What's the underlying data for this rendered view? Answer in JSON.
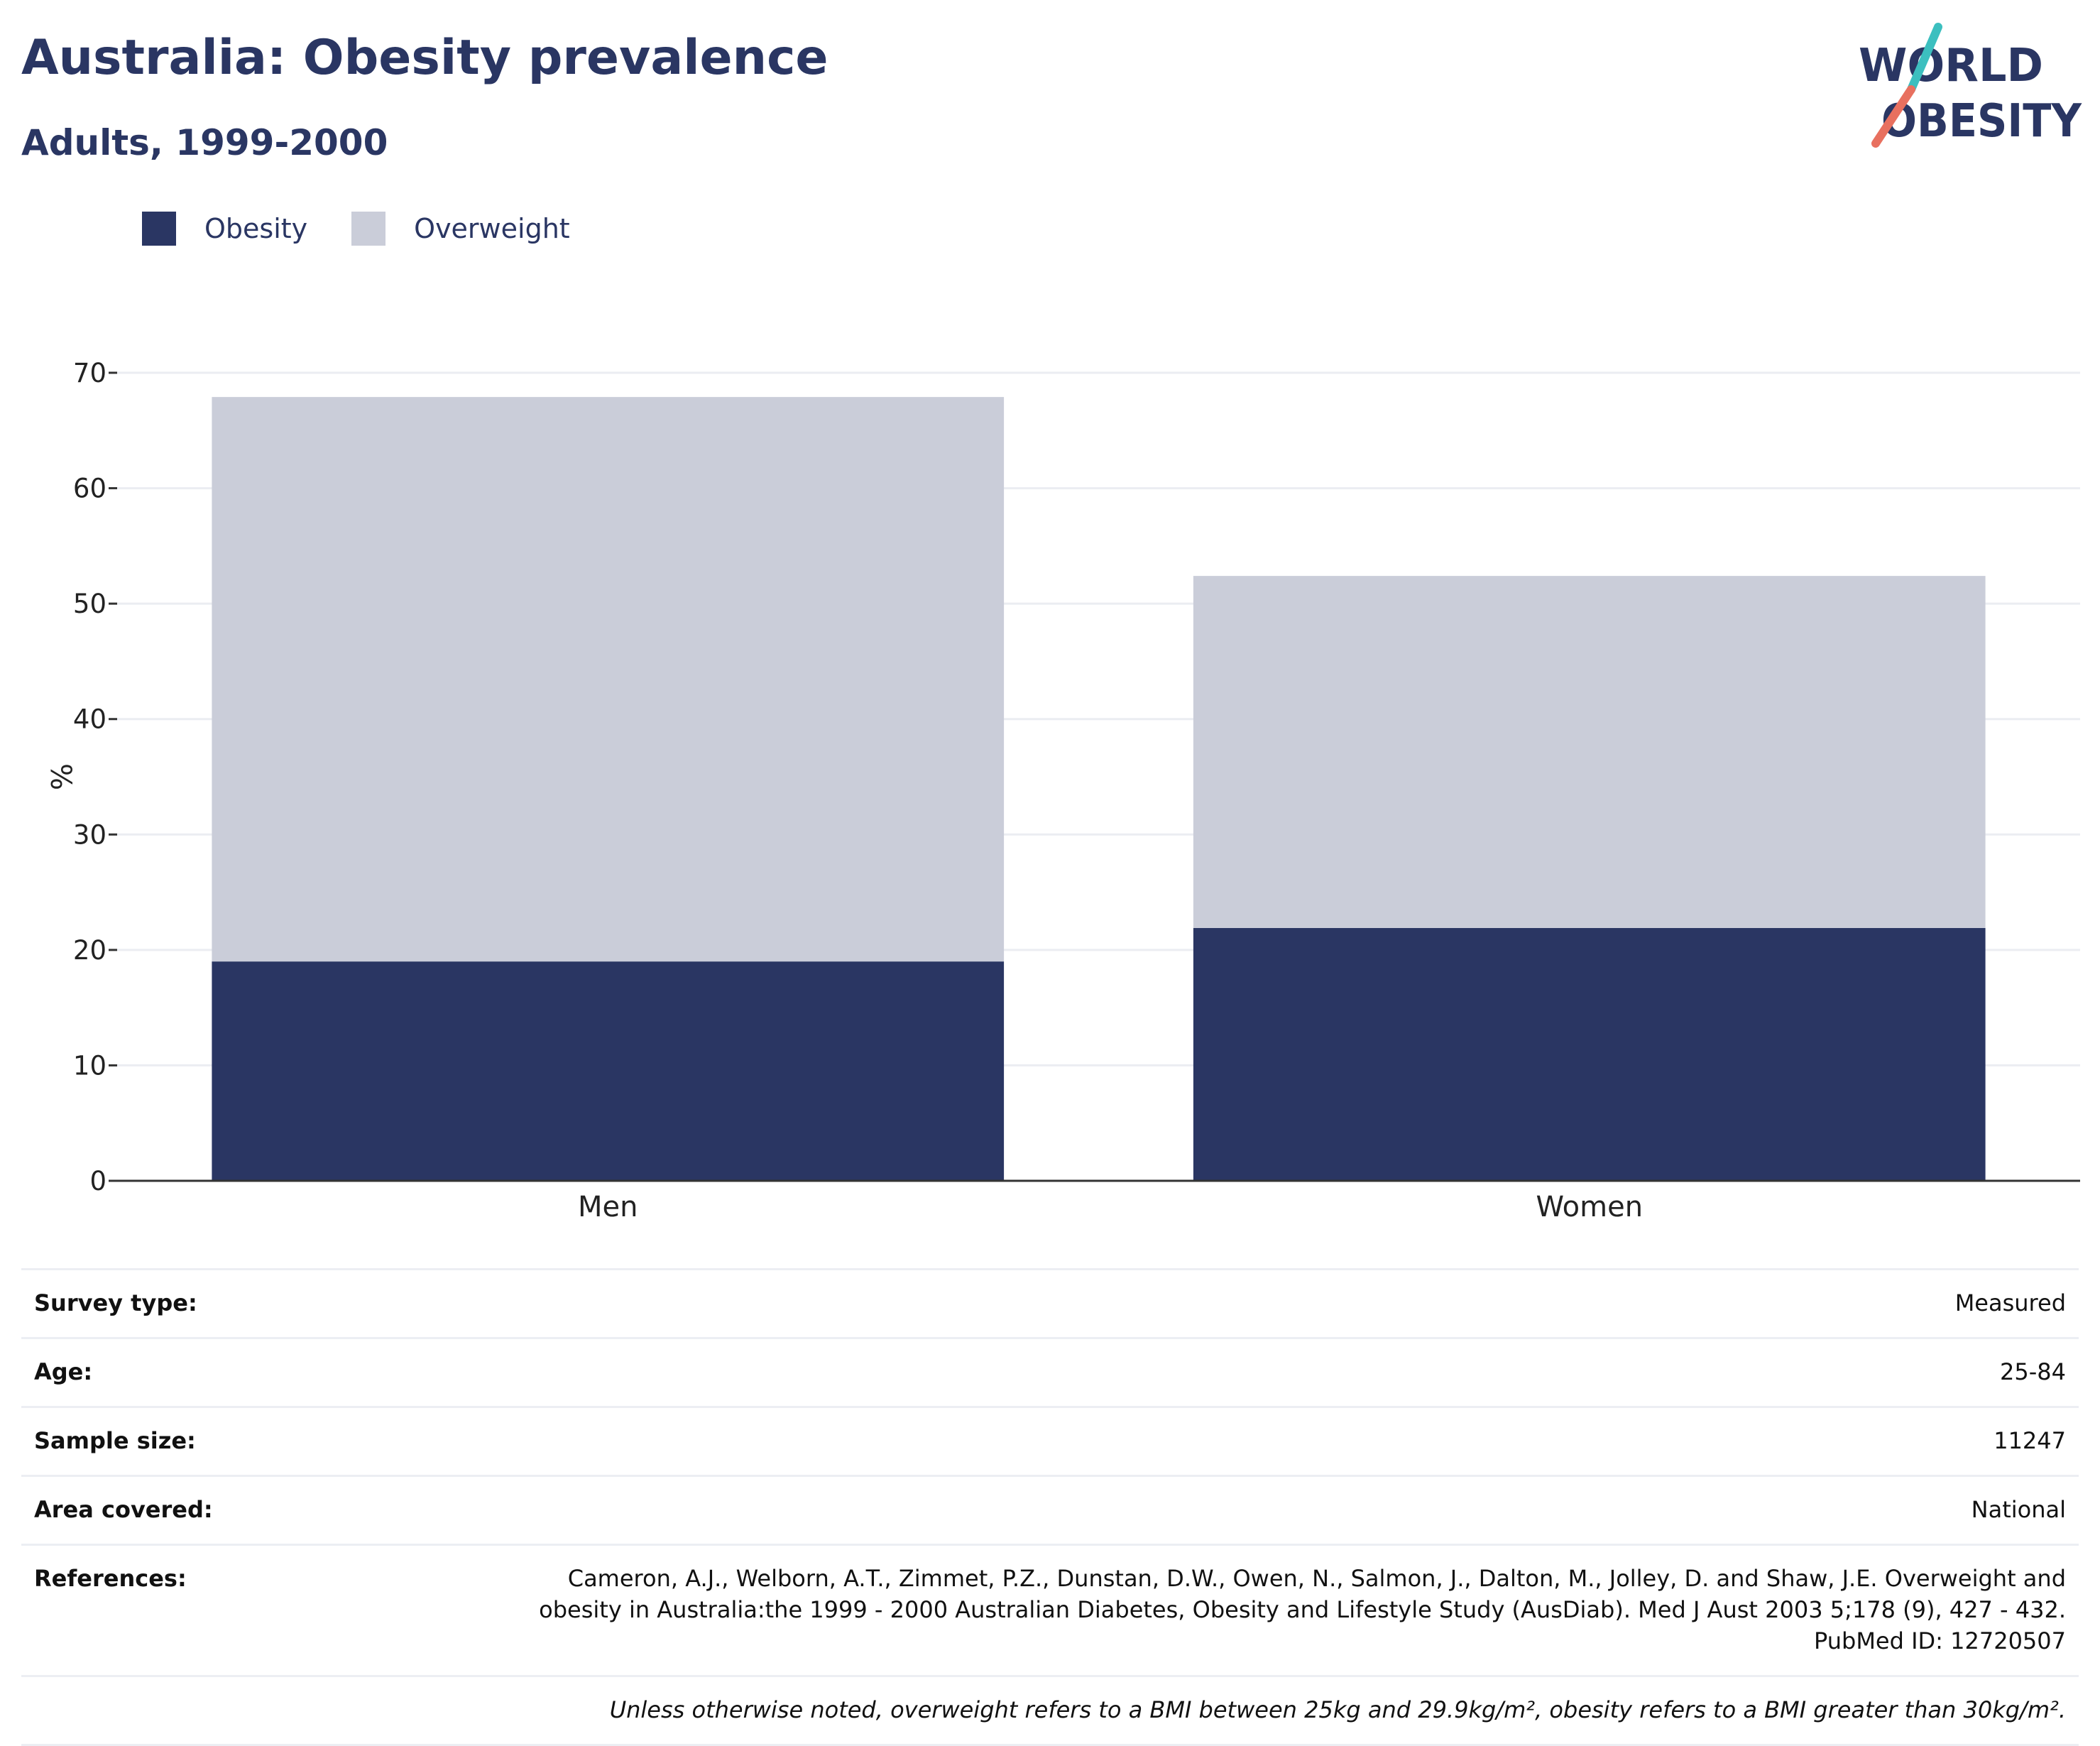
{
  "header": {
    "title": "Australia: Obesity prevalence",
    "subtitle": "Adults, 1999-2000"
  },
  "logo": {
    "line1": "WORLD",
    "line2": "OBESITY"
  },
  "colors": {
    "obesity": "#2a3663",
    "overweight": "#cacdd9",
    "text": "#2a3663",
    "grid": "#ebedf2",
    "axis": "#333333",
    "logo_teal": "#3cbfbf",
    "logo_coral": "#e8705f"
  },
  "chart_data": {
    "type": "bar",
    "stacked": true,
    "categories": [
      "Men",
      "Women"
    ],
    "series": [
      {
        "name": "Obesity",
        "values": [
          19.0,
          21.9
        ]
      },
      {
        "name": "Overweight",
        "values": [
          48.9,
          30.5
        ]
      }
    ],
    "ylabel": "%",
    "ylim": [
      0,
      70
    ],
    "yticks": [
      0,
      10,
      20,
      30,
      40,
      50,
      60,
      70
    ],
    "grid": true,
    "legend": "top-left"
  },
  "meta": {
    "rows": [
      {
        "key": "Survey type:",
        "value": "Measured"
      },
      {
        "key": "Age:",
        "value": "25-84"
      },
      {
        "key": "Sample size:",
        "value": "11247"
      },
      {
        "key": "Area covered:",
        "value": "National"
      }
    ],
    "references": {
      "key": "References:",
      "lines": [
        "Cameron, A.J., Welborn, A.T., Zimmet, P.Z., Dunstan, D.W., Owen, N., Salmon, J., Dalton, M., Jolley, D. and Shaw, J.E. Overweight and",
        "obesity in Australia:the 1999 - 2000 Australian Diabetes, Obesity and Lifestyle Study (AusDiab). Med J Aust 2003 5;178 (9), 427 - 432.",
        "PubMed ID: 12720507"
      ]
    },
    "note": "Unless otherwise noted, overweight refers to a BMI between 25kg and 29.9kg/m², obesity refers to a BMI greater than 30kg/m²."
  }
}
